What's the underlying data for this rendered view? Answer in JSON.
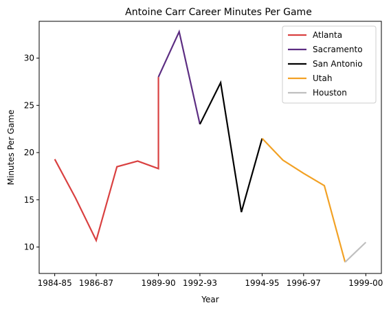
{
  "chart_data": {
    "type": "line",
    "title": "Antoine Carr Career Minutes Per Game",
    "xlabel": "Year",
    "ylabel": "Minutes Per Game",
    "x_tick_labels": [
      "1984-85",
      "1986-87",
      "1989-90",
      "1992-93",
      "1994-95",
      "1996-97",
      "1999-00"
    ],
    "x_tick_positions": [
      0,
      2,
      5,
      7,
      10,
      12,
      15
    ],
    "xlim": [
      -0.75,
      15.75
    ],
    "yticks": [
      10,
      15,
      20,
      25,
      30
    ],
    "ylim": [
      7.2,
      33.9
    ],
    "grid": false,
    "legend_position": "top-right",
    "series": [
      {
        "name": "Atlanta",
        "color": "#d94040",
        "x": [
          0,
          1,
          2,
          3,
          4,
          5,
          5
        ],
        "y": [
          19.3,
          15.2,
          10.7,
          18.5,
          19.1,
          18.3,
          28.0
        ]
      },
      {
        "name": "Sacramento",
        "color": "#5c2d82",
        "x": [
          5,
          6,
          7
        ],
        "y": [
          28.0,
          32.8,
          23.0
        ]
      },
      {
        "name": "San Antonio",
        "color": "#000000",
        "x": [
          7,
          8,
          9,
          10
        ],
        "y": [
          23.0,
          27.4,
          13.7,
          21.5
        ]
      },
      {
        "name": "Utah",
        "color": "#f2a124",
        "x": [
          10,
          11,
          12,
          13,
          14
        ],
        "y": [
          21.5,
          19.2,
          17.8,
          16.5,
          8.4
        ]
      },
      {
        "name": "Houston",
        "color": "#bfbfbf",
        "x": [
          14,
          15
        ],
        "y": [
          8.4,
          10.5
        ]
      }
    ]
  }
}
